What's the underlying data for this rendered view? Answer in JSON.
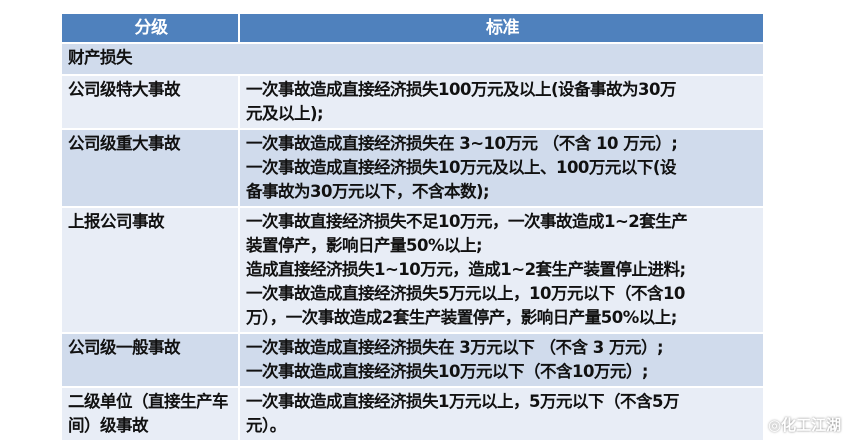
{
  "header": {
    "col1": "分级",
    "col2": "标准"
  },
  "section": "财产损失",
  "rows": [
    {
      "level": "公司级特大事故",
      "criteria": [
        "一次事故造成直接经济损失100万元及以上(设备事故为30万",
        "元及以上);"
      ]
    },
    {
      "level": "公司级重大事故",
      "criteria": [
        "一次事故造成直接经济损失在 3~10万元 （不含 10 万元）;",
        "一次事故造成直接经济损失10万元及以上、100万元以下(设",
        "备事故为30万元以下，不含本数);"
      ]
    },
    {
      "level": "上报公司事故",
      "criteria": [
        "一次事故直接经济损失不足10万元，一次事故造成1~2套生产",
        "装置停产，影响日产量50%以上;",
        "造成直接经济损失1~10万元，造成1~2套生产装置停止进料;",
        "一次事故造成直接经济损失5万元以上，10万元以下（不含10",
        "万），一次事故造成2套生产装置停产，影响日产量50%以上;"
      ]
    },
    {
      "level": "公司级一般事故",
      "criteria": [
        "一次事故造成直接经济损失在 3万元以下 （不含 3 万元）;",
        "一次事故造成直接经济损失10万元以下（不含10万元）;"
      ]
    },
    {
      "level": "二级单位（直接生产车间）级事故",
      "criteria": [
        "一次事故造成直接经济损失1万元以上，5万元以下（不含5万",
        "元）。"
      ]
    }
  ],
  "watermark": "化工江湖"
}
